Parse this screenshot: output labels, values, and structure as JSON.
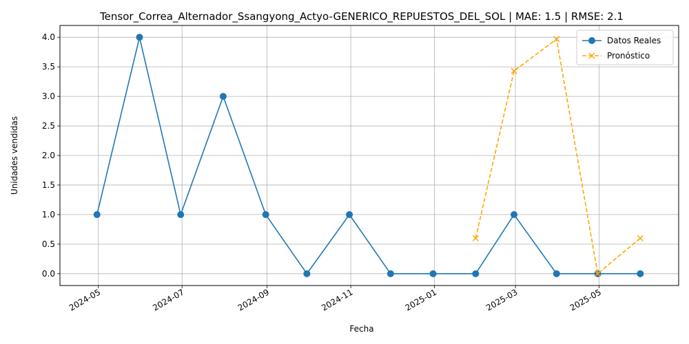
{
  "chart_data": {
    "type": "line",
    "title": "Tensor_Correa_Alternador_Ssangyong_Actyo-GENERICO_REPUESTOS_DEL_SOL | MAE: 1.5 | RMSE: 2.1",
    "xlabel": "Fecha",
    "ylabel": "Unidades vendidas",
    "x_tick_labels": [
      "2024-05",
      "2024-07",
      "2024-09",
      "2024-11",
      "2025-01",
      "2025-03",
      "2025-05"
    ],
    "y_tick_labels": [
      "0.0",
      "0.5",
      "1.0",
      "1.5",
      "2.0",
      "2.5",
      "3.0",
      "3.5",
      "4.0"
    ],
    "ylim": [
      -0.2,
      4.2
    ],
    "xlim": [
      "2024-04-03",
      "2025-06-28"
    ],
    "grid": true,
    "legend_position": "top-right",
    "series": [
      {
        "name": "Datos Reales",
        "color": "#1f77b4",
        "style": "solid",
        "marker": "circle",
        "x": [
          "2024-04-30",
          "2024-05-31",
          "2024-06-30",
          "2024-07-31",
          "2024-08-31",
          "2024-09-30",
          "2024-10-31",
          "2024-11-30",
          "2024-12-31",
          "2025-01-31",
          "2025-02-28",
          "2025-03-31",
          "2025-04-30",
          "2025-05-31"
        ],
        "values": [
          1,
          4,
          1,
          3,
          1,
          0,
          1,
          0,
          0,
          0,
          1,
          0,
          0,
          0
        ]
      },
      {
        "name": "Pronóstico",
        "color": "#ffa500",
        "style": "dashed",
        "marker": "x",
        "x": [
          "2025-01-31",
          "2025-02-28",
          "2025-03-31",
          "2025-04-30",
          "2025-05-31"
        ],
        "values": [
          0.6,
          3.43,
          3.97,
          0.0,
          0.6
        ]
      }
    ]
  }
}
